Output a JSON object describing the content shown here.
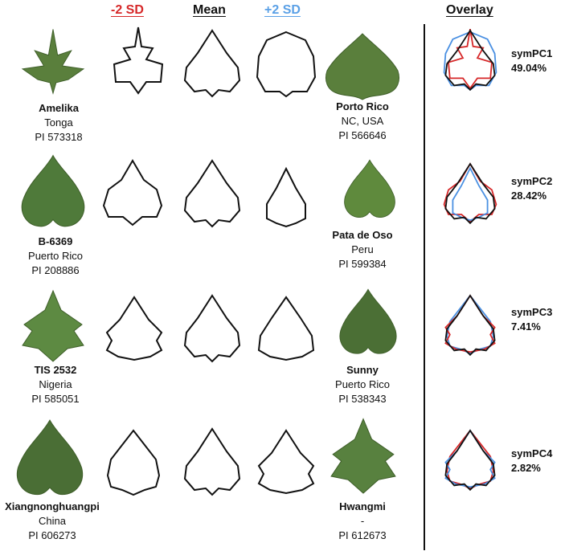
{
  "headers": {
    "minus": {
      "text": "-2 SD",
      "color": "#d62728"
    },
    "mean": {
      "text": "Mean",
      "color": "#111111"
    },
    "plus": {
      "text": "+2 SD",
      "color": "#5aa0e6"
    },
    "overlay": {
      "text": "Overlay",
      "color": "#111111"
    }
  },
  "colors": {
    "leaf": "#5a7f3c",
    "leaf_dark": "#3f5f2a",
    "outline": "#111111",
    "minus": "#d62728",
    "plus": "#4a90e2",
    "divider": "#111111"
  },
  "rows": [
    {
      "pc": {
        "name": "symPC1",
        "pct": "49.04%"
      },
      "left": {
        "name": "Amelika",
        "place": "Tonga",
        "pi": "PI 573318"
      },
      "right": {
        "name": "Porto Rico",
        "place": "NC, USA",
        "pi": "PI 566646"
      }
    },
    {
      "pc": {
        "name": "symPC2",
        "pct": "28.42%"
      },
      "left": {
        "name": "B-6369",
        "place": "Puerto Rico",
        "pi": "PI 208886"
      },
      "right": {
        "name": "Pata de Oso",
        "place": "Peru",
        "pi": "PI 599384"
      }
    },
    {
      "pc": {
        "name": "symPC3",
        "pct": "7.41%"
      },
      "left": {
        "name": "TIS 2532",
        "place": "Nigeria",
        "pi": "PI 585051"
      },
      "right": {
        "name": "Sunny",
        "place": "Puerto Rico",
        "pi": "PI 538343"
      }
    },
    {
      "pc": {
        "name": "symPC4",
        "pct": "2.82%"
      },
      "left": {
        "name": "Xiangnonghuangpi",
        "place": "China",
        "pi": "PI 606273"
      },
      "right": {
        "name": "Hwangmi",
        "place": "-",
        "pi": "PI 612673"
      }
    }
  ]
}
